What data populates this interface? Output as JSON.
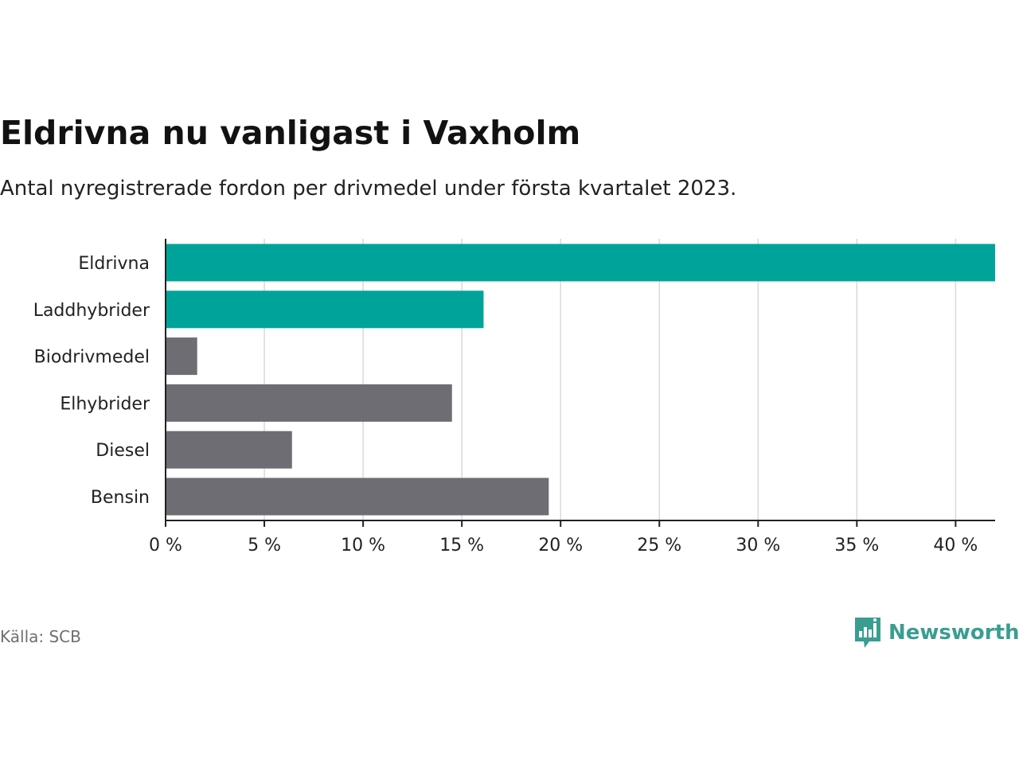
{
  "header": {
    "title": "Eldrivna nu vanligast i Vaxholm",
    "subtitle": "Antal nyregistrerade fordon per drivmedel under första kvartalet 2023."
  },
  "chart_data": {
    "type": "bar",
    "orientation": "horizontal",
    "categories": [
      "Eldrivna",
      "Laddhybrider",
      "Biodrivmedel",
      "Elhybrider",
      "Diesel",
      "Bensin"
    ],
    "values": [
      42,
      16.1,
      1.6,
      14.5,
      6.4,
      19.4
    ],
    "highlighted": [
      true,
      true,
      false,
      false,
      false,
      false
    ],
    "xlim": [
      0,
      42
    ],
    "xticks": [
      0,
      5,
      10,
      15,
      20,
      25,
      30,
      35,
      40
    ],
    "xtick_labels": [
      "0 %",
      "5 %",
      "10 %",
      "15 %",
      "20 %",
      "25 %",
      "30 %",
      "35 %",
      "40 %"
    ],
    "grid": true,
    "colors": {
      "highlight": "#00a39a",
      "default": "#6e6d73",
      "grid": "#d9d9d9",
      "axis": "#222222",
      "label": "#222222"
    }
  },
  "footer": {
    "source": "Källa: SCB",
    "brand": "Newsworthy",
    "brand_icon": "newsworthy-logo-icon",
    "brand_color": "#3a9d92"
  }
}
